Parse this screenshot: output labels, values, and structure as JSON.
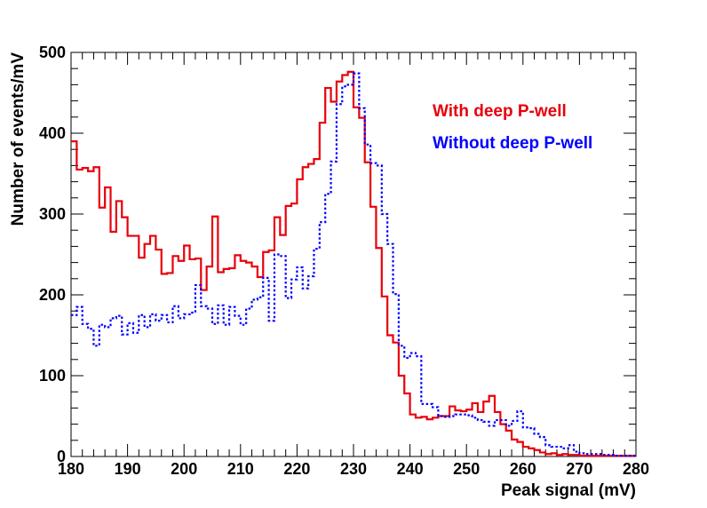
{
  "chart_data": {
    "type": "step",
    "xlabel": "Peak signal (mV)",
    "ylabel": "Number of events/mV",
    "xlim": [
      180,
      280
    ],
    "ylim": [
      0,
      500
    ],
    "x_ticks": [
      180,
      190,
      200,
      210,
      220,
      230,
      240,
      250,
      260,
      270,
      280
    ],
    "y_ticks": [
      0,
      100,
      200,
      300,
      400,
      500
    ],
    "bin_start": 180,
    "bin_width": 1,
    "legend_position": "top-right",
    "series": [
      {
        "name": "With deep P-well",
        "color": "#e8000b",
        "line_style": "solid",
        "values": [
          390,
          355,
          357,
          353,
          358,
          308,
          333,
          278,
          316,
          296,
          273,
          273,
          246,
          263,
          273,
          256,
          226,
          227,
          248,
          242,
          261,
          244,
          245,
          206,
          235,
          297,
          228,
          232,
          233,
          249,
          242,
          240,
          235,
          222,
          253,
          255,
          296,
          274,
          310,
          313,
          343,
          358,
          362,
          368,
          413,
          456,
          439,
          464,
          472,
          476,
          432,
          419,
          364,
          309,
          258,
          198,
          150,
          141,
          100,
          78,
          52,
          48,
          49,
          46,
          48,
          50,
          50,
          62,
          57,
          56,
          58,
          66,
          55,
          68,
          75,
          55,
          40,
          32,
          21,
          18,
          12,
          10,
          8,
          5,
          3,
          4,
          2,
          3,
          2,
          2,
          1,
          1,
          1,
          1,
          1,
          1,
          1,
          1,
          1,
          1
        ]
      },
      {
        "name": "Without deep P-well",
        "color": "#0000ff",
        "line_style": "dotted",
        "values": [
          175,
          185,
          164,
          158,
          137,
          163,
          160,
          171,
          174,
          151,
          165,
          153,
          175,
          160,
          176,
          168,
          175,
          166,
          186,
          171,
          176,
          178,
          212,
          186,
          183,
          164,
          187,
          163,
          185,
          174,
          163,
          183,
          194,
          197,
          221,
          168,
          250,
          248,
          196,
          219,
          234,
          208,
          223,
          257,
          290,
          325,
          365,
          436,
          458,
          460,
          474,
          431,
          386,
          363,
          360,
          300,
          263,
          201,
          137,
          122,
          128,
          124,
          65,
          65,
          61,
          50,
          49,
          50,
          52,
          52,
          51,
          48,
          45,
          43,
          38,
          45,
          45,
          38,
          44,
          56,
          36,
          35,
          28,
          24,
          14,
          12,
          12,
          10,
          14,
          6,
          4,
          3,
          3,
          3,
          2,
          2,
          1,
          1,
          1,
          1
        ]
      }
    ]
  }
}
